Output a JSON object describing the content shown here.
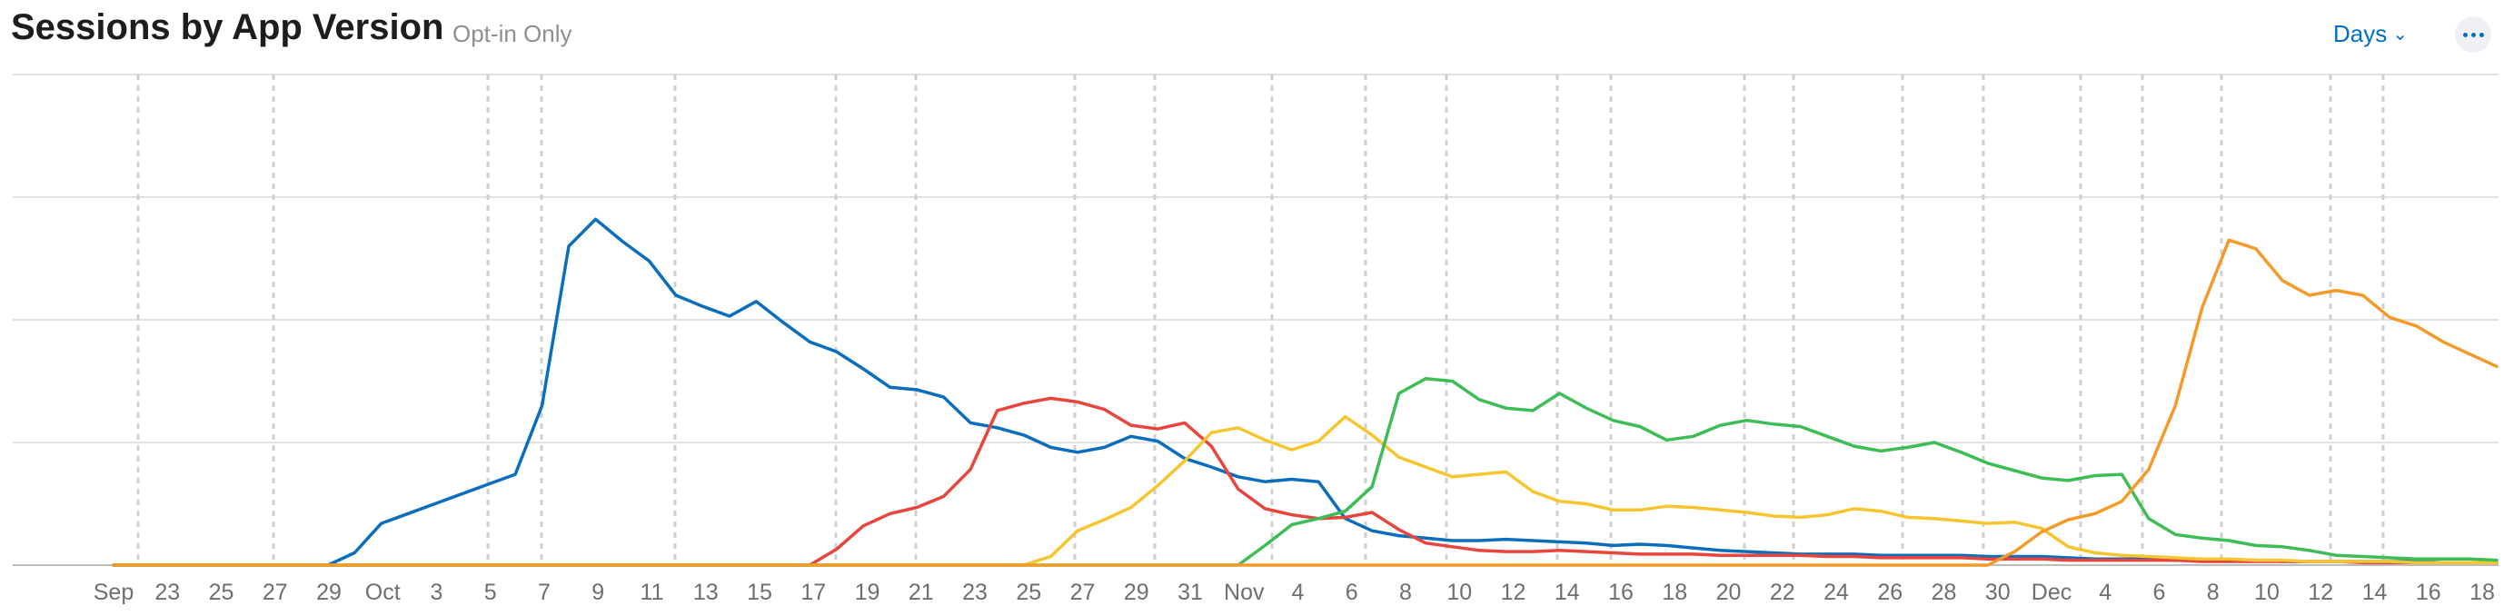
{
  "header": {
    "title": "Sessions by App Version",
    "subtitle": "Opt-in Only",
    "granularity_label": "Days",
    "chevron_icon": "chevron-down-icon",
    "more_icon": "ellipsis-icon"
  },
  "colors": {
    "accent": "#0070c9",
    "blue": "#0a6ebd",
    "red": "#e8453c",
    "yellow": "#f7c52f",
    "green": "#3dbd55",
    "orange": "#f49a28",
    "gridline": "#d8d8d8",
    "weekline": "#d0d0d0"
  },
  "chart_data": {
    "type": "line",
    "title": "Sessions by App Version",
    "xlabel": "",
    "ylabel": "",
    "grid": true,
    "x_tick_labels": [
      "Sep",
      "23",
      "25",
      "27",
      "29",
      "Oct",
      "3",
      "5",
      "7",
      "9",
      "11",
      "13",
      "15",
      "17",
      "19",
      "21",
      "23",
      "25",
      "27",
      "29",
      "31",
      "Nov",
      "4",
      "6",
      "8",
      "10",
      "12",
      "14",
      "16",
      "18",
      "20",
      "22",
      "24",
      "26",
      "28",
      "30",
      "Dec",
      "4",
      "6",
      "8",
      "10",
      "12",
      "14",
      "16",
      "18"
    ],
    "ylim": [
      0,
      4
    ],
    "y_gridlines": [
      0,
      1,
      2,
      3,
      4
    ],
    "days": 90,
    "series": [
      {
        "color": "blue",
        "values": [
          0,
          0,
          0,
          0,
          0,
          0,
          0,
          0,
          0,
          0.1,
          0.34,
          0.42,
          0.5,
          0.58,
          0.66,
          0.74,
          1.3,
          2.6,
          2.82,
          2.64,
          2.48,
          2.2,
          2.11,
          2.03,
          2.15,
          1.98,
          1.82,
          1.74,
          1.6,
          1.45,
          1.43,
          1.37,
          1.16,
          1.12,
          1.06,
          0.96,
          0.92,
          0.96,
          1.05,
          1.01,
          0.87,
          0.8,
          0.72,
          0.68,
          0.7,
          0.68,
          0.38,
          0.28,
          0.24,
          0.22,
          0.2,
          0.2,
          0.21,
          0.2,
          0.19,
          0.18,
          0.16,
          0.17,
          0.16,
          0.14,
          0.12,
          0.11,
          0.1,
          0.09,
          0.09,
          0.09,
          0.08,
          0.08,
          0.08,
          0.08,
          0.07,
          0.07,
          0.07,
          0.06,
          0.05,
          0.05,
          0.05,
          0.04,
          0.04,
          0.04,
          0.04,
          0.03,
          0.03,
          0.03,
          0.03,
          0.03,
          0.03,
          0.02,
          0.02,
          0.02
        ]
      },
      {
        "color": "red",
        "values": [
          0,
          0,
          0,
          0,
          0,
          0,
          0,
          0,
          0,
          0,
          0,
          0,
          0,
          0,
          0,
          0,
          0,
          0,
          0,
          0,
          0,
          0,
          0,
          0,
          0,
          0,
          0,
          0.13,
          0.32,
          0.42,
          0.47,
          0.56,
          0.78,
          1.26,
          1.32,
          1.36,
          1.33,
          1.27,
          1.14,
          1.11,
          1.16,
          0.97,
          0.62,
          0.46,
          0.41,
          0.38,
          0.39,
          0.43,
          0.29,
          0.18,
          0.15,
          0.12,
          0.11,
          0.11,
          0.12,
          0.11,
          0.1,
          0.09,
          0.09,
          0.09,
          0.08,
          0.08,
          0.08,
          0.08,
          0.07,
          0.07,
          0.06,
          0.06,
          0.06,
          0.06,
          0.05,
          0.05,
          0.05,
          0.04,
          0.04,
          0.04,
          0.04,
          0.04,
          0.03,
          0.03,
          0.03,
          0.03,
          0.03,
          0.03,
          0.02,
          0.02,
          0.02,
          0.02,
          0.02,
          0.02
        ]
      },
      {
        "color": "yellow",
        "values": [
          0,
          0,
          0,
          0,
          0,
          0,
          0,
          0,
          0,
          0,
          0,
          0,
          0,
          0,
          0,
          0,
          0,
          0,
          0,
          0,
          0,
          0,
          0,
          0,
          0,
          0,
          0,
          0,
          0,
          0,
          0,
          0,
          0,
          0,
          0,
          0.07,
          0.28,
          0.37,
          0.47,
          0.65,
          0.85,
          1.08,
          1.12,
          1.02,
          0.94,
          1.01,
          1.21,
          1.06,
          0.88,
          0.8,
          0.72,
          0.74,
          0.76,
          0.6,
          0.52,
          0.5,
          0.45,
          0.45,
          0.48,
          0.47,
          0.45,
          0.43,
          0.4,
          0.39,
          0.41,
          0.46,
          0.44,
          0.39,
          0.38,
          0.36,
          0.34,
          0.35,
          0.3,
          0.15,
          0.1,
          0.08,
          0.07,
          0.06,
          0.05,
          0.05,
          0.04,
          0.04,
          0.03,
          0.03,
          0.03,
          0.03,
          0.02,
          0.02,
          0.02,
          0.02
        ]
      },
      {
        "color": "green",
        "values": [
          0,
          0,
          0,
          0,
          0,
          0,
          0,
          0,
          0,
          0,
          0,
          0,
          0,
          0,
          0,
          0,
          0,
          0,
          0,
          0,
          0,
          0,
          0,
          0,
          0,
          0,
          0,
          0,
          0,
          0,
          0,
          0,
          0,
          0,
          0,
          0,
          0,
          0,
          0,
          0,
          0,
          0,
          0,
          0.16,
          0.33,
          0.38,
          0.44,
          0.64,
          1.4,
          1.52,
          1.5,
          1.35,
          1.28,
          1.26,
          1.4,
          1.28,
          1.18,
          1.13,
          1.02,
          1.05,
          1.14,
          1.18,
          1.15,
          1.13,
          1.05,
          0.97,
          0.93,
          0.96,
          1.0,
          0.92,
          0.83,
          0.77,
          0.71,
          0.69,
          0.73,
          0.74,
          0.38,
          0.25,
          0.22,
          0.2,
          0.16,
          0.15,
          0.12,
          0.08,
          0.07,
          0.06,
          0.05,
          0.05,
          0.05,
          0.04
        ]
      },
      {
        "color": "orange",
        "values": [
          0,
          0,
          0,
          0,
          0,
          0,
          0,
          0,
          0,
          0,
          0,
          0,
          0,
          0,
          0,
          0,
          0,
          0,
          0,
          0,
          0,
          0,
          0,
          0,
          0,
          0,
          0,
          0,
          0,
          0,
          0,
          0,
          0,
          0,
          0,
          0,
          0,
          0,
          0,
          0,
          0,
          0,
          0,
          0,
          0,
          0,
          0,
          0,
          0,
          0,
          0,
          0,
          0,
          0,
          0,
          0,
          0,
          0,
          0,
          0,
          0,
          0,
          0,
          0,
          0,
          0,
          0,
          0,
          0,
          0,
          0,
          0.11,
          0.27,
          0.37,
          0.42,
          0.52,
          0.78,
          1.3,
          2.1,
          2.65,
          2.58,
          2.32,
          2.2,
          2.24,
          2.2,
          2.02,
          1.95,
          1.82,
          1.72,
          1.62
        ]
      }
    ]
  }
}
